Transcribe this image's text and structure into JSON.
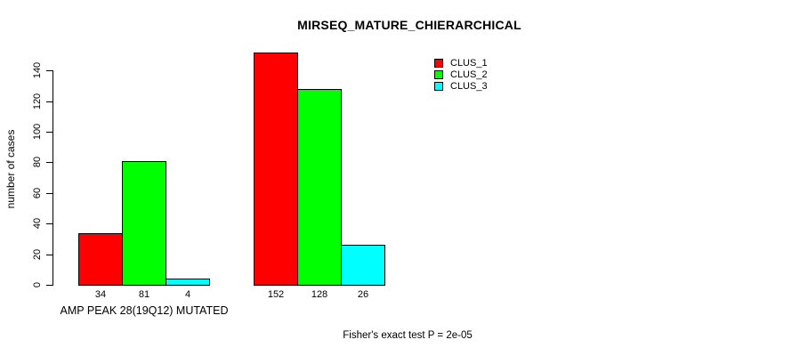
{
  "title": "MIRSEQ_MATURE_CHIERARCHICAL",
  "annotation": "Fisher's exact test P = 2e-05",
  "chart_data": {
    "type": "bar",
    "title": "MIRSEQ_MATURE_CHIERARCHICAL",
    "xlabel": "",
    "ylabel": "number of cases",
    "ylim": [
      0,
      140
    ],
    "yticks": [
      0,
      20,
      40,
      60,
      80,
      100,
      120,
      140
    ],
    "grid": false,
    "legend_position": "top-right-inside",
    "bar_border_color": "#000000",
    "series": [
      {
        "name": "CLUS_1",
        "color": "#ff0000"
      },
      {
        "name": "CLUS_2",
        "color": "#00ff00"
      },
      {
        "name": "CLUS_3",
        "color": "#00ffff"
      }
    ],
    "groups": [
      {
        "label": "AMP PEAK 28(19Q12) MUTATED",
        "values": [
          34,
          81,
          4
        ]
      },
      {
        "label": "",
        "values": [
          152,
          128,
          26
        ]
      }
    ],
    "annotation": "Fisher's exact test P = 2e-05"
  }
}
